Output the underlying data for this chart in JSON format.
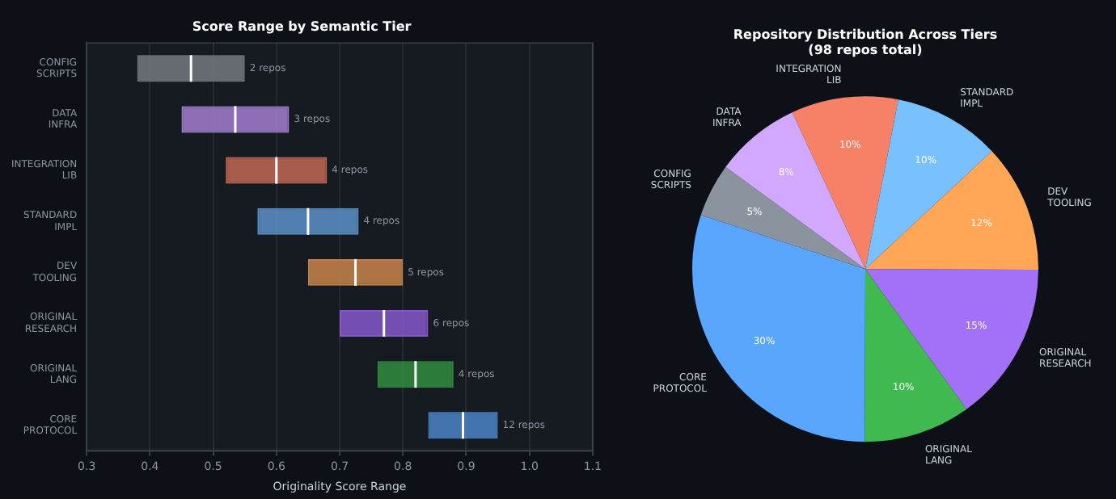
{
  "chart_data": [
    {
      "type": "box",
      "orientation": "horizontal",
      "title": "Score Range by Semantic Tier",
      "xlabel": "Originality Score Range",
      "categories": [
        "CONFIG\nSCRIPTS",
        "DATA\nINFRA",
        "INTEGRATION\nLIB",
        "STANDARD\nIMPL",
        "DEV\nTOOLING",
        "ORIGINAL\nRESEARCH",
        "ORIGINAL\nLANG",
        "CORE\nPROTOCOL"
      ],
      "boxes": [
        {
          "low": 0.38,
          "q1": 0.38,
          "median": 0.465,
          "q3": 0.55,
          "high": 0.55
        },
        {
          "low": 0.45,
          "q1": 0.45,
          "median": 0.535,
          "q3": 0.62,
          "high": 0.62
        },
        {
          "low": 0.52,
          "q1": 0.52,
          "median": 0.6,
          "q3": 0.68,
          "high": 0.68
        },
        {
          "low": 0.57,
          "q1": 0.57,
          "median": 0.65,
          "q3": 0.73,
          "high": 0.73
        },
        {
          "low": 0.65,
          "q1": 0.65,
          "median": 0.725,
          "q3": 0.8,
          "high": 0.8
        },
        {
          "low": 0.7,
          "q1": 0.7,
          "median": 0.77,
          "q3": 0.84,
          "high": 0.84
        },
        {
          "low": 0.76,
          "q1": 0.76,
          "median": 0.82,
          "q3": 0.88,
          "high": 0.88
        },
        {
          "low": 0.84,
          "q1": 0.84,
          "median": 0.895,
          "q3": 0.95,
          "high": 0.95
        }
      ],
      "colors": [
        "#72787f",
        "#a07dcc",
        "#bd6753",
        "#5a8fc6",
        "#c7824a",
        "#8257c6",
        "#2f8a3f",
        "#4a82c4"
      ],
      "xlim": [
        0.3,
        1.1
      ],
      "xticks": [
        0.3,
        0.4,
        0.5,
        0.6,
        0.7,
        0.8,
        0.9,
        {
          "value": 1,
          "label": "1.0"
        },
        1.1
      ],
      "grid": "x",
      "legend": false,
      "annotations": [
        {
          "text": "2 repos",
          "x": 0.55,
          "y": "CONFIG\nSCRIPTS"
        },
        {
          "text": "3 repos",
          "x": 0.62,
          "y": "DATA\nINFRA"
        },
        {
          "text": "4 repos",
          "x": 0.68,
          "y": "INTEGRATION\nLIB"
        },
        {
          "text": "4 repos",
          "x": 0.73,
          "y": "STANDARD\nIMPL"
        },
        {
          "text": "5 repos",
          "x": 0.8,
          "y": "DEV\nTOOLING"
        },
        {
          "text": "6 repos",
          "x": 0.84,
          "y": "ORIGINAL\nRESEARCH"
        },
        {
          "text": "4 repos",
          "x": 0.88,
          "y": "ORIGINAL\nLANG"
        },
        {
          "text": "12 repos",
          "x": 0.95,
          "y": "CORE\nPROTOCOL"
        }
      ]
    },
    {
      "type": "pie",
      "title": "Repository Distribution Across Tiers",
      "subtitle": "(98 repos total)",
      "categories": [
        "INTEGRATION\nLIB",
        "STANDARD\nIMPL",
        "DEV\nTOOLING",
        "ORIGINAL\nRESEARCH",
        "ORIGINAL\nLANG",
        "CORE\nPROTOCOL",
        "CONFIG\nSCRIPTS",
        "DATA\nINFRA"
      ],
      "values": [
        10,
        10,
        12,
        15,
        10,
        30,
        5,
        8
      ],
      "value_labels": [
        "10%",
        "10%",
        "12%",
        "15%",
        "10%",
        "30%",
        "5%",
        "8%"
      ],
      "colors": [
        "#f78166",
        "#79c0ff",
        "#ffa657",
        "#a371f7",
        "#3fb950",
        "#58a6ff",
        "#8b949e",
        "#d2a8ff"
      ],
      "legend": false
    }
  ]
}
